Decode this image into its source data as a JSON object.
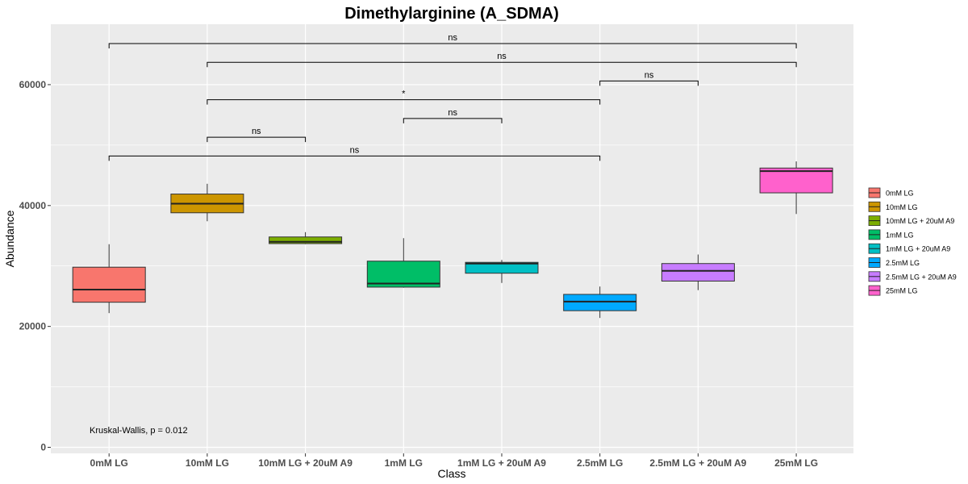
{
  "chart_data": {
    "type": "box",
    "title": "Dimethylarginine (A_SDMA)",
    "xlabel": "Class",
    "ylabel": "Abundance",
    "ylim": [
      -1000,
      70000
    ],
    "yticks": [
      0,
      20000,
      40000,
      60000
    ],
    "ytick_labels": [
      "0",
      "20000",
      "40000",
      "60000"
    ],
    "categories": [
      "0mM LG",
      "10mM LG",
      "10mM LG + 20uM A9",
      "1mM LG",
      "1mM LG + 20uM A9",
      "2.5mM LG",
      "2.5mM LG + 20uM A9",
      "25mM LG"
    ],
    "boxes": [
      {
        "category": "0mM LG",
        "min": 22200,
        "q1": 24000,
        "median": 26100,
        "q3": 29800,
        "max": 33600,
        "color": "#F8766D"
      },
      {
        "category": "10mM LG",
        "min": 37400,
        "q1": 38800,
        "median": 40300,
        "q3": 41900,
        "max": 43600,
        "color": "#CD9600"
      },
      {
        "category": "10mM LG + 20uM A9",
        "min": 33600,
        "q1": 33700,
        "median": 34000,
        "q3": 34800,
        "max": 35600,
        "color": "#7CAE00"
      },
      {
        "category": "1mM LG",
        "min": 26400,
        "q1": 26500,
        "median": 27100,
        "q3": 30800,
        "max": 34600,
        "color": "#00BE67"
      },
      {
        "category": "1mM LG + 20uM A9",
        "min": 27200,
        "q1": 28800,
        "median": 30400,
        "q3": 30600,
        "max": 31000,
        "color": "#00BFC4"
      },
      {
        "category": "2.5mM LG",
        "min": 21400,
        "q1": 22600,
        "median": 24100,
        "q3": 25300,
        "max": 26600,
        "color": "#00A9FF"
      },
      {
        "category": "2.5mM LG + 20uM A9",
        "min": 26000,
        "q1": 27500,
        "median": 29200,
        "q3": 30400,
        "max": 31900,
        "color": "#C77CFF"
      },
      {
        "category": "25mM LG",
        "min": 38600,
        "q1": 42100,
        "median": 45700,
        "q3": 46200,
        "max": 47300,
        "color": "#FF61CC"
      }
    ],
    "comparisons": [
      {
        "from": 0,
        "to": 7,
        "y": 66800,
        "label": "ns"
      },
      {
        "from": 1,
        "to": 7,
        "y": 63700,
        "label": "ns"
      },
      {
        "from": 5,
        "to": 6,
        "y": 60600,
        "label": "ns"
      },
      {
        "from": 1,
        "to": 5,
        "y": 57500,
        "label": "*"
      },
      {
        "from": 3,
        "to": 4,
        "y": 54400,
        "label": "ns"
      },
      {
        "from": 1,
        "to": 2,
        "y": 51300,
        "label": "ns"
      },
      {
        "from": 0,
        "to": 5,
        "y": 48200,
        "label": "ns"
      }
    ],
    "annotation": "Kruskal-Wallis, p = 0.012",
    "grid": true,
    "legend_position": "right"
  }
}
